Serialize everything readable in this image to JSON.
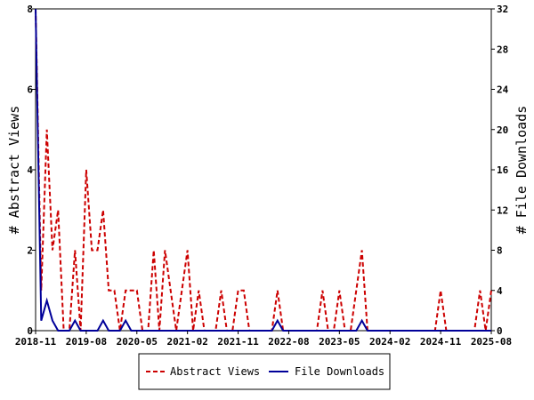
{
  "chart_data": {
    "type": "line",
    "ylabel_left": "# Abstract Views",
    "ylabel_right": "# File Downloads",
    "xlim": [
      "2018-11",
      "2025-08"
    ],
    "ylim_left": [
      0,
      8
    ],
    "ylim_right": [
      0,
      32
    ],
    "x_ticks": [
      "2018-11",
      "2019-08",
      "2020-05",
      "2021-02",
      "2021-11",
      "2022-08",
      "2023-05",
      "2024-02",
      "2024-11",
      "2025-08"
    ],
    "y_ticks_left": [
      "0",
      "2",
      "4",
      "6",
      "8"
    ],
    "y_ticks_right": [
      "0",
      "4",
      "8",
      "12",
      "16",
      "20",
      "24",
      "28",
      "32"
    ],
    "grid": false,
    "legend_position": "bottom",
    "colors": {
      "abstract_views": "#cc0000",
      "file_downloads": "#000099"
    },
    "x": [
      "2018-11",
      "2018-12",
      "2019-01",
      "2019-02",
      "2019-03",
      "2019-04",
      "2019-05",
      "2019-06",
      "2019-07",
      "2019-08",
      "2019-09",
      "2019-10",
      "2019-11",
      "2019-12",
      "2020-01",
      "2020-02",
      "2020-03",
      "2020-04",
      "2020-05",
      "2020-06",
      "2020-07",
      "2020-08",
      "2020-09",
      "2020-10",
      "2020-11",
      "2020-12",
      "2021-01",
      "2021-02",
      "2021-03",
      "2021-04",
      "2021-05",
      "2021-06",
      "2021-07",
      "2021-08",
      "2021-09",
      "2021-10",
      "2021-11",
      "2021-12",
      "2022-01",
      "2022-02",
      "2022-03",
      "2022-04",
      "2022-05",
      "2022-06",
      "2022-07",
      "2022-08",
      "2022-09",
      "2022-10",
      "2022-11",
      "2022-12",
      "2023-01",
      "2023-02",
      "2023-03",
      "2023-04",
      "2023-05",
      "2023-06",
      "2023-07",
      "2023-08",
      "2023-09",
      "2023-10",
      "2023-11",
      "2023-12",
      "2024-01",
      "2024-02",
      "2024-03",
      "2024-04",
      "2024-05",
      "2024-06",
      "2024-07",
      "2024-08",
      "2024-09",
      "2024-10",
      "2024-11",
      "2024-12",
      "2025-01",
      "2025-02",
      "2025-03",
      "2025-04",
      "2025-05",
      "2025-06",
      "2025-07",
      "2025-08"
    ],
    "series": [
      {
        "name": "Abstract Views",
        "axis": "left",
        "style": "dashed",
        "values": [
          8,
          1,
          5,
          2,
          3,
          0,
          0,
          2,
          0,
          4,
          2,
          2,
          3,
          1,
          1,
          0,
          1,
          1,
          1,
          0,
          0,
          2,
          0,
          2,
          1,
          0,
          1,
          2,
          0,
          1,
          0,
          0,
          0,
          1,
          0,
          0,
          1,
          1,
          0,
          0,
          0,
          0,
          0,
          1,
          0,
          0,
          0,
          0,
          0,
          0,
          0,
          1,
          0,
          0,
          1,
          0,
          0,
          1,
          2,
          0,
          0,
          0,
          0,
          0,
          0,
          0,
          0,
          0,
          0,
          0,
          0,
          0,
          1,
          0,
          0,
          0,
          0,
          0,
          0,
          1,
          0,
          1
        ]
      },
      {
        "name": "File Downloads",
        "axis": "right",
        "style": "solid",
        "values": [
          32,
          1,
          3,
          1,
          0,
          0,
          0,
          1,
          0,
          0,
          0,
          0,
          1,
          0,
          0,
          0,
          1,
          0,
          0,
          0,
          0,
          0,
          0,
          0,
          0,
          0,
          0,
          0,
          0,
          0,
          0,
          0,
          0,
          0,
          0,
          0,
          0,
          0,
          0,
          0,
          0,
          0,
          0,
          1,
          0,
          0,
          0,
          0,
          0,
          0,
          0,
          0,
          0,
          0,
          0,
          0,
          0,
          0,
          1,
          0,
          0,
          0,
          0,
          0,
          0,
          0,
          0,
          0,
          0,
          0,
          0,
          0,
          0,
          0,
          0,
          0,
          0,
          0,
          0,
          0,
          0,
          0
        ]
      }
    ]
  }
}
